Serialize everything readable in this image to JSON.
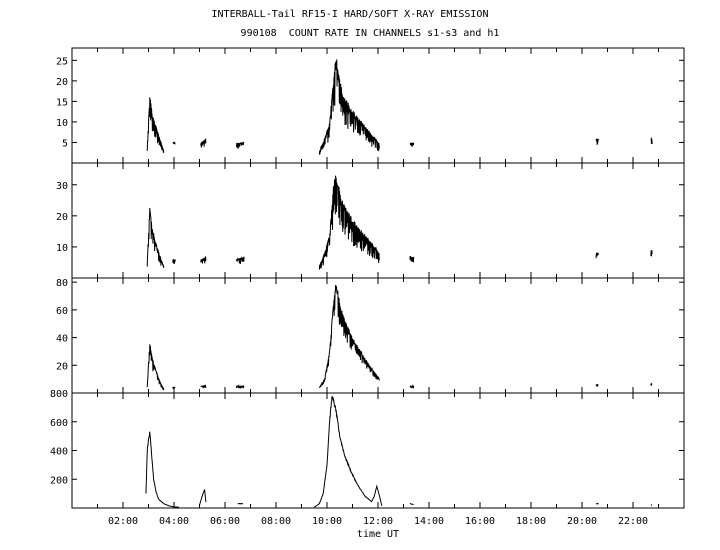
{
  "title": "INTERBALL-Tail RF15-I HARD/SOFT X-RAY EMISSION",
  "subtitle": "990108  COUNT RATE IN CHANNELS s1-s3 and h1",
  "xlabel": "time UT",
  "chart_data": {
    "type": "line",
    "title": "INTERBALL-Tail RF15-I HARD/SOFT X-RAY EMISSION",
    "subtitle": "990108  COUNT RATE IN CHANNELS s1-s3 and h1",
    "xlabel": "time UT",
    "xlim": [
      0,
      24
    ],
    "x_ticks": [
      "02:00",
      "04:00",
      "06:00",
      "08:00",
      "10:00",
      "12:00",
      "14:00",
      "16:00",
      "18:00",
      "20:00",
      "22:00"
    ],
    "grid": false,
    "panels": [
      {
        "ylim": [
          0,
          28
        ],
        "y_ticks": [
          "5",
          "10",
          "15",
          "20",
          "25"
        ],
        "segments": [
          {
            "x": [
              2.95,
              3.05,
              3.15,
              3.3,
              3.5,
              3.6
            ],
            "y": [
              4,
              17,
              12,
              9,
              5,
              3
            ],
            "noise": 0.45
          },
          {
            "x": [
              3.95,
              4.05
            ],
            "y": [
              5,
              5
            ],
            "noise": 0.3
          },
          {
            "x": [
              5.05,
              5.25
            ],
            "y": [
              5,
              6
            ],
            "noise": 0.35
          },
          {
            "x": [
              6.45,
              6.75
            ],
            "y": [
              5,
              5
            ],
            "noise": 0.35
          },
          {
            "x": [
              9.7,
              9.9,
              10.1,
              10.25,
              10.35,
              10.6,
              11.0,
              11.5,
              11.9,
              12.05
            ],
            "y": [
              3,
              6,
              10,
              20,
              27,
              17,
              13,
              9,
              6,
              5
            ],
            "noise": 0.5
          },
          {
            "x": [
              13.25,
              13.4
            ],
            "y": [
              5,
              5
            ],
            "noise": 0.35
          },
          {
            "x": [
              20.55,
              20.65
            ],
            "y": [
              6,
              6
            ],
            "noise": 0.3
          },
          {
            "x": [
              22.7,
              22.75
            ],
            "y": [
              6,
              6
            ],
            "noise": 0.3
          }
        ]
      },
      {
        "ylim": [
          0,
          37
        ],
        "y_ticks": [
          "10",
          "20",
          "30"
        ],
        "segments": [
          {
            "x": [
              2.95,
              3.05,
              3.15,
              3.3,
              3.5,
              3.6
            ],
            "y": [
              5,
              23,
              16,
              11,
              6,
              4
            ],
            "noise": 0.45
          },
          {
            "x": [
              3.95,
              4.05
            ],
            "y": [
              6,
              6
            ],
            "noise": 0.3
          },
          {
            "x": [
              5.05,
              5.25
            ],
            "y": [
              6,
              7
            ],
            "noise": 0.35
          },
          {
            "x": [
              6.45,
              6.75
            ],
            "y": [
              6,
              7
            ],
            "noise": 0.35
          },
          {
            "x": [
              9.7,
              9.9,
              10.1,
              10.25,
              10.35,
              10.6,
              11.0,
              11.5,
              11.9,
              12.05
            ],
            "y": [
              4,
              8,
              14,
              30,
              34,
              25,
              19,
              14,
              10,
              8
            ],
            "noise": 0.5
          },
          {
            "x": [
              13.25,
              13.4
            ],
            "y": [
              7,
              7
            ],
            "noise": 0.35
          },
          {
            "x": [
              20.55,
              20.65
            ],
            "y": [
              8,
              8
            ],
            "noise": 0.3
          },
          {
            "x": [
              22.7,
              22.75
            ],
            "y": [
              9,
              9
            ],
            "noise": 0.3
          }
        ]
      },
      {
        "ylim": [
          0,
          83
        ],
        "y_ticks": [
          "20",
          "40",
          "60",
          "80"
        ],
        "segments": [
          {
            "x": [
              2.95,
              3.05,
              3.15,
              3.3,
              3.5,
              3.6
            ],
            "y": [
              5,
              37,
              26,
              16,
              6,
              3
            ],
            "noise": 0.45
          },
          {
            "x": [
              3.95,
              4.05
            ],
            "y": [
              4,
              4
            ],
            "noise": 0.3
          },
          {
            "x": [
              5.05,
              5.25
            ],
            "y": [
              5,
              5
            ],
            "noise": 0.35
          },
          {
            "x": [
              6.45,
              6.75
            ],
            "y": [
              5,
              5
            ],
            "noise": 0.35
          },
          {
            "x": [
              9.7,
              9.9,
              10.1,
              10.25,
              10.35,
              10.6,
              11.0,
              11.5,
              11.9,
              12.05
            ],
            "y": [
              4,
              10,
              30,
              65,
              80,
              58,
              40,
              25,
              14,
              11
            ],
            "noise": 0.3
          },
          {
            "x": [
              13.25,
              13.4
            ],
            "y": [
              5,
              5
            ],
            "noise": 0.35
          },
          {
            "x": [
              20.55,
              20.65
            ],
            "y": [
              6,
              6
            ],
            "noise": 0.3
          },
          {
            "x": [
              22.7,
              22.75
            ],
            "y": [
              7,
              7
            ],
            "noise": 0.3
          }
        ]
      },
      {
        "ylim": [
          0,
          800
        ],
        "y_ticks": [
          "200",
          "400",
          "600",
          "800"
        ],
        "segments": [
          {
            "x": [
              2.9,
              2.95,
              3.05,
              3.12,
              3.2,
              3.3,
              3.4,
              3.6,
              3.8,
              4.0,
              4.2
            ],
            "y": [
              100,
              400,
              530,
              380,
              200,
              110,
              60,
              30,
              15,
              8,
              5
            ],
            "noise": 0.05
          },
          {
            "x": [
              5.0,
              5.1,
              5.2,
              5.25
            ],
            "y": [
              20,
              80,
              130,
              40
            ],
            "noise": 0.05
          },
          {
            "x": [
              6.5,
              6.7
            ],
            "y": [
              30,
              30
            ],
            "noise": 0.1
          },
          {
            "x": [
              9.5,
              9.7,
              9.85,
              10.0,
              10.1,
              10.2,
              10.35,
              10.5,
              10.7,
              10.95,
              11.2,
              11.5,
              11.75,
              11.85,
              11.95,
              12.05,
              12.15
            ],
            "y": [
              5,
              30,
              100,
              300,
              600,
              780,
              680,
              500,
              360,
              250,
              160,
              80,
              45,
              80,
              150,
              90,
              15
            ],
            "noise": 0.04
          },
          {
            "x": [
              13.25,
              13.4
            ],
            "y": [
              30,
              25
            ],
            "noise": 0.1
          },
          {
            "x": [
              20.55,
              20.65
            ],
            "y": [
              30,
              30
            ],
            "noise": 0.1
          },
          {
            "x": [
              22.7,
              22.75
            ],
            "y": [
              20,
              20
            ],
            "noise": 0.1
          }
        ]
      }
    ]
  }
}
